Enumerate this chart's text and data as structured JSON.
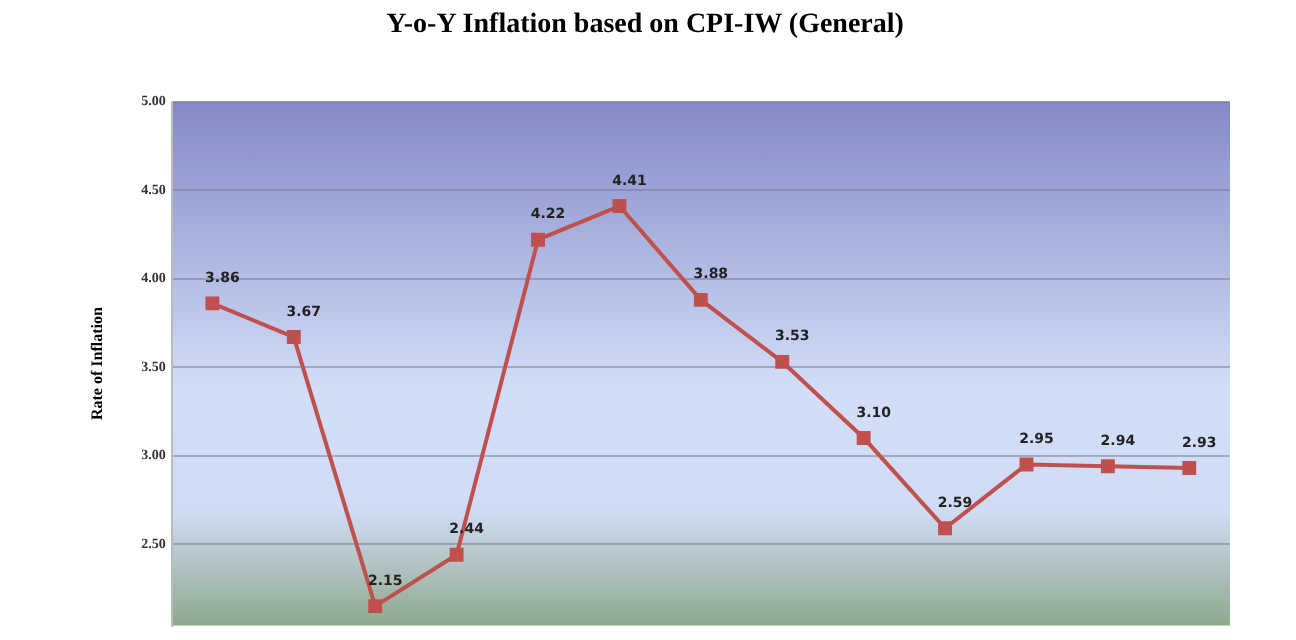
{
  "chart_data": {
    "type": "line",
    "title": "Y-o-Y Inflation based on CPI-IW (General)",
    "ylabel": "Rate of Inflation",
    "categories": [
      null,
      null,
      null,
      null,
      null,
      null,
      null,
      null,
      null,
      null,
      null,
      null,
      null
    ],
    "series": [
      {
        "color": "#c0504d",
        "values": [
          3.86,
          3.67,
          2.15,
          2.44,
          4.22,
          4.41,
          3.88,
          3.53,
          3.1,
          2.59,
          2.95,
          2.94,
          2.93
        ],
        "value_labels": [
          "3.86",
          "3.67",
          "2.15",
          "2.44",
          "4.22",
          "4.41",
          "3.88",
          "3.53",
          "3.10",
          "2.59",
          "2.95",
          "2.94",
          "2.93"
        ]
      }
    ],
    "ylim": [
      2.04,
      5.0
    ],
    "yticks": [
      {
        "value": 2.5,
        "label": "2.50"
      },
      {
        "value": 3.0,
        "label": "3.00"
      },
      {
        "value": 3.5,
        "label": "3.50"
      },
      {
        "value": 4.0,
        "label": "4.00"
      },
      {
        "value": 4.5,
        "label": "4.50"
      },
      {
        "value": 5.0,
        "label": "5.00"
      }
    ],
    "grid": "y",
    "marker": "square",
    "line_style": "solid",
    "tick_labels": "y",
    "legend": false
  }
}
